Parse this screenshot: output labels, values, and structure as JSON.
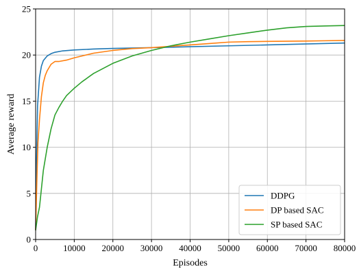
{
  "chart_data": {
    "type": "line",
    "title": "",
    "xlabel": "Episodes",
    "ylabel": "Average reward",
    "xlim": [
      0,
      80000
    ],
    "ylim": [
      0,
      25
    ],
    "xticks": [
      0,
      10000,
      20000,
      30000,
      40000,
      50000,
      60000,
      70000,
      80000
    ],
    "yticks": [
      0,
      5,
      10,
      15,
      20,
      25
    ],
    "grid": true,
    "legend_position": "lower-right",
    "series": [
      {
        "name": "DDPG",
        "color": "#1f77b4",
        "x": [
          0,
          200,
          500,
          1000,
          1500,
          2000,
          3000,
          4000,
          5000,
          7000,
          10000,
          15000,
          20000,
          30000,
          40000,
          50000,
          60000,
          70000,
          80000
        ],
        "y": [
          1.0,
          8.0,
          14.5,
          17.6,
          18.8,
          19.4,
          19.9,
          20.15,
          20.3,
          20.45,
          20.55,
          20.65,
          20.72,
          20.8,
          20.9,
          21.0,
          21.1,
          21.2,
          21.3
        ]
      },
      {
        "name": "DP based SAC",
        "color": "#ff7f0e",
        "x": [
          0,
          300,
          600,
          1000,
          1500,
          2000,
          2500,
          3000,
          4000,
          5000,
          6000,
          8000,
          10000,
          15000,
          20000,
          25000,
          30000,
          35000,
          40000,
          45000,
          50000,
          55000,
          60000,
          65000,
          70000,
          75000,
          80000
        ],
        "y": [
          1.0,
          6.0,
          10.5,
          13.0,
          15.5,
          17.0,
          17.8,
          18.3,
          19.0,
          19.3,
          19.3,
          19.45,
          19.7,
          20.2,
          20.5,
          20.7,
          20.8,
          20.95,
          21.1,
          21.25,
          21.4,
          21.45,
          21.48,
          21.5,
          21.52,
          21.55,
          21.58
        ]
      },
      {
        "name": "SP based SAC",
        "color": "#2ca02c",
        "x": [
          0,
          500,
          1000,
          1500,
          2000,
          3000,
          4000,
          5000,
          6000,
          7000,
          8000,
          9000,
          10000,
          12000,
          15000,
          20000,
          25000,
          30000,
          35000,
          40000,
          45000,
          50000,
          55000,
          60000,
          65000,
          70000,
          75000,
          80000
        ],
        "y": [
          1.0,
          2.5,
          3.5,
          5.5,
          7.5,
          10.0,
          12.0,
          13.5,
          14.3,
          15.0,
          15.6,
          16.0,
          16.4,
          17.1,
          18.0,
          19.1,
          19.9,
          20.5,
          21.0,
          21.4,
          21.75,
          22.1,
          22.4,
          22.7,
          22.95,
          23.1,
          23.15,
          23.2
        ]
      }
    ]
  }
}
